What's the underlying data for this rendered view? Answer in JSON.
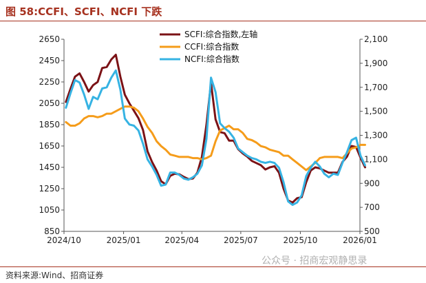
{
  "header": {
    "title": "图 58:CCFI、SCFI、NCFI 下跌"
  },
  "footer": {
    "source": "资料来源:Wind、招商证券",
    "watermark": "公众号 · 招商宏观静思录"
  },
  "chart_data": {
    "type": "line",
    "title": "图 58:CCFI、SCFI、NCFI 下跌",
    "x_labels": [
      "2024/10",
      "2025/01",
      "2025/04",
      "2025/07",
      "2025/10",
      "2026/01"
    ],
    "x_dates": [
      "2024-10-01",
      "2025-01-01",
      "2025-04-01",
      "2025-07-01",
      "2025-10-01",
      "2026-01-01"
    ],
    "x_range": [
      "2024-10-01",
      "2026-01-01"
    ],
    "left_axis": {
      "ticks": [
        850,
        1050,
        1250,
        1450,
        1650,
        1850,
        2050,
        2250,
        2450,
        2650
      ],
      "ylim": [
        850,
        2650
      ]
    },
    "right_axis": {
      "ticks": [
        "500",
        "700",
        "900",
        "1,100",
        "1,300",
        "1,500",
        "1,700",
        "1,900",
        "2,100"
      ],
      "ylim": [
        500,
        2100
      ]
    },
    "grid": false,
    "legend_position": "top-center",
    "series": [
      {
        "name": "SCFI:综合指数,左轴",
        "axis": "left",
        "color": "#7b1216",
        "dates": [
          "2024-10-04",
          "2024-10-11",
          "2024-10-18",
          "2024-10-25",
          "2024-11-01",
          "2024-11-08",
          "2024-11-15",
          "2024-11-22",
          "2024-11-29",
          "2024-12-06",
          "2024-12-13",
          "2024-12-20",
          "2024-12-27",
          "2025-01-03",
          "2025-01-10",
          "2025-01-17",
          "2025-01-24",
          "2025-01-31",
          "2025-02-07",
          "2025-02-14",
          "2025-02-21",
          "2025-02-28",
          "2025-03-07",
          "2025-03-14",
          "2025-03-21",
          "2025-03-28",
          "2025-04-04",
          "2025-04-11",
          "2025-04-18",
          "2025-04-25",
          "2025-05-02",
          "2025-05-09",
          "2025-05-16",
          "2025-05-23",
          "2025-05-30",
          "2025-06-06",
          "2025-06-13",
          "2025-06-20",
          "2025-06-27",
          "2025-07-04",
          "2025-07-11",
          "2025-07-18",
          "2025-07-25",
          "2025-08-01",
          "2025-08-08",
          "2025-08-15",
          "2025-08-22",
          "2025-08-29",
          "2025-09-05",
          "2025-09-12",
          "2025-09-19",
          "2025-09-26",
          "2025-10-03",
          "2025-10-10",
          "2025-10-17",
          "2025-10-24",
          "2025-10-31",
          "2025-11-07",
          "2025-11-14",
          "2025-11-21",
          "2025-11-28",
          "2025-12-05",
          "2025-12-12",
          "2025-12-19",
          "2025-12-26",
          "2026-01-02",
          "2026-01-09"
        ],
        "values": [
          2062,
          2185,
          2300,
          2330,
          2250,
          2160,
          2220,
          2250,
          2380,
          2390,
          2460,
          2505,
          2300,
          2130,
          2050,
          1980,
          1910,
          1800,
          1600,
          1500,
          1420,
          1320,
          1290,
          1370,
          1390,
          1385,
          1360,
          1340,
          1345,
          1400,
          1550,
          1850,
          2240,
          1900,
          1780,
          1770,
          1700,
          1700,
          1620,
          1580,
          1550,
          1510,
          1490,
          1470,
          1430,
          1450,
          1460,
          1400,
          1250,
          1140,
          1120,
          1160,
          1170,
          1310,
          1420,
          1450,
          1440,
          1420,
          1400,
          1400,
          1400,
          1500,
          1550,
          1650,
          1640,
          1540,
          1450
        ]
      },
      {
        "name": "CCFI:综合指数",
        "axis": "right",
        "color": "#f59c1a",
        "dates": [
          "2024-10-04",
          "2024-10-11",
          "2024-10-18",
          "2024-10-25",
          "2024-11-01",
          "2024-11-08",
          "2024-11-15",
          "2024-11-22",
          "2024-11-29",
          "2024-12-06",
          "2024-12-13",
          "2024-12-20",
          "2024-12-27",
          "2025-01-03",
          "2025-01-10",
          "2025-01-17",
          "2025-01-24",
          "2025-01-31",
          "2025-02-07",
          "2025-02-14",
          "2025-02-21",
          "2025-02-28",
          "2025-03-07",
          "2025-03-14",
          "2025-03-21",
          "2025-03-28",
          "2025-04-04",
          "2025-04-11",
          "2025-04-18",
          "2025-04-25",
          "2025-05-02",
          "2025-05-09",
          "2025-05-16",
          "2025-05-23",
          "2025-05-30",
          "2025-06-06",
          "2025-06-13",
          "2025-06-20",
          "2025-06-27",
          "2025-07-04",
          "2025-07-11",
          "2025-07-18",
          "2025-07-25",
          "2025-08-01",
          "2025-08-08",
          "2025-08-15",
          "2025-08-22",
          "2025-08-29",
          "2025-09-05",
          "2025-09-12",
          "2025-09-19",
          "2025-09-26",
          "2025-10-03",
          "2025-10-10",
          "2025-10-17",
          "2025-10-24",
          "2025-10-31",
          "2025-11-07",
          "2025-11-14",
          "2025-11-21",
          "2025-11-28",
          "2025-12-05",
          "2025-12-12",
          "2025-12-19",
          "2025-12-26",
          "2026-01-02",
          "2026-01-09"
        ],
        "values": [
          1410,
          1380,
          1380,
          1400,
          1440,
          1460,
          1460,
          1450,
          1460,
          1480,
          1480,
          1500,
          1520,
          1540,
          1540,
          1530,
          1500,
          1440,
          1370,
          1320,
          1250,
          1210,
          1180,
          1140,
          1130,
          1120,
          1120,
          1120,
          1110,
          1110,
          1100,
          1110,
          1130,
          1250,
          1340,
          1360,
          1380,
          1350,
          1350,
          1320,
          1270,
          1260,
          1240,
          1210,
          1200,
          1180,
          1170,
          1160,
          1130,
          1130,
          1100,
          1070,
          1040,
          1010,
          1040,
          1070,
          1110,
          1120,
          1120,
          1120,
          1120,
          1110,
          1150,
          1190,
          1200,
          1220,
          1220
        ]
      },
      {
        "name": "NCFI:综合指数",
        "axis": "right",
        "color": "#36b3e3",
        "dates": [
          "2024-10-04",
          "2024-10-11",
          "2024-10-18",
          "2024-10-25",
          "2024-11-01",
          "2024-11-08",
          "2024-11-15",
          "2024-11-22",
          "2024-11-29",
          "2024-12-06",
          "2024-12-13",
          "2024-12-20",
          "2024-12-27",
          "2025-01-03",
          "2025-01-10",
          "2025-01-17",
          "2025-01-24",
          "2025-01-31",
          "2025-02-07",
          "2025-02-14",
          "2025-02-21",
          "2025-02-28",
          "2025-03-07",
          "2025-03-14",
          "2025-03-21",
          "2025-03-28",
          "2025-04-04",
          "2025-04-11",
          "2025-04-18",
          "2025-04-25",
          "2025-05-02",
          "2025-05-09",
          "2025-05-16",
          "2025-05-23",
          "2025-05-30",
          "2025-06-06",
          "2025-06-13",
          "2025-06-20",
          "2025-06-27",
          "2025-07-04",
          "2025-07-11",
          "2025-07-18",
          "2025-07-25",
          "2025-08-01",
          "2025-08-08",
          "2025-08-15",
          "2025-08-22",
          "2025-08-29",
          "2025-09-05",
          "2025-09-12",
          "2025-09-19",
          "2025-09-26",
          "2025-10-03",
          "2025-10-10",
          "2025-10-17",
          "2025-10-24",
          "2025-10-31",
          "2025-11-07",
          "2025-11-14",
          "2025-11-21",
          "2025-11-28",
          "2025-12-05",
          "2025-12-12",
          "2025-12-19",
          "2025-12-26",
          "2026-01-02",
          "2026-01-09"
        ],
        "values": [
          1530,
          1650,
          1760,
          1740,
          1640,
          1520,
          1620,
          1600,
          1690,
          1700,
          1780,
          1840,
          1680,
          1440,
          1390,
          1380,
          1340,
          1230,
          1100,
          1040,
          970,
          880,
          890,
          990,
          990,
          970,
          940,
          930,
          950,
          980,
          1050,
          1270,
          1780,
          1660,
          1400,
          1360,
          1330,
          1280,
          1190,
          1160,
          1130,
          1110,
          1100,
          1080,
          1070,
          1080,
          1070,
          1030,
          910,
          750,
          720,
          740,
          800,
          960,
          1030,
          1080,
          1040,
          980,
          950,
          980,
          970,
          1070,
          1160,
          1260,
          1280,
          1130,
          1050
        ]
      }
    ]
  }
}
